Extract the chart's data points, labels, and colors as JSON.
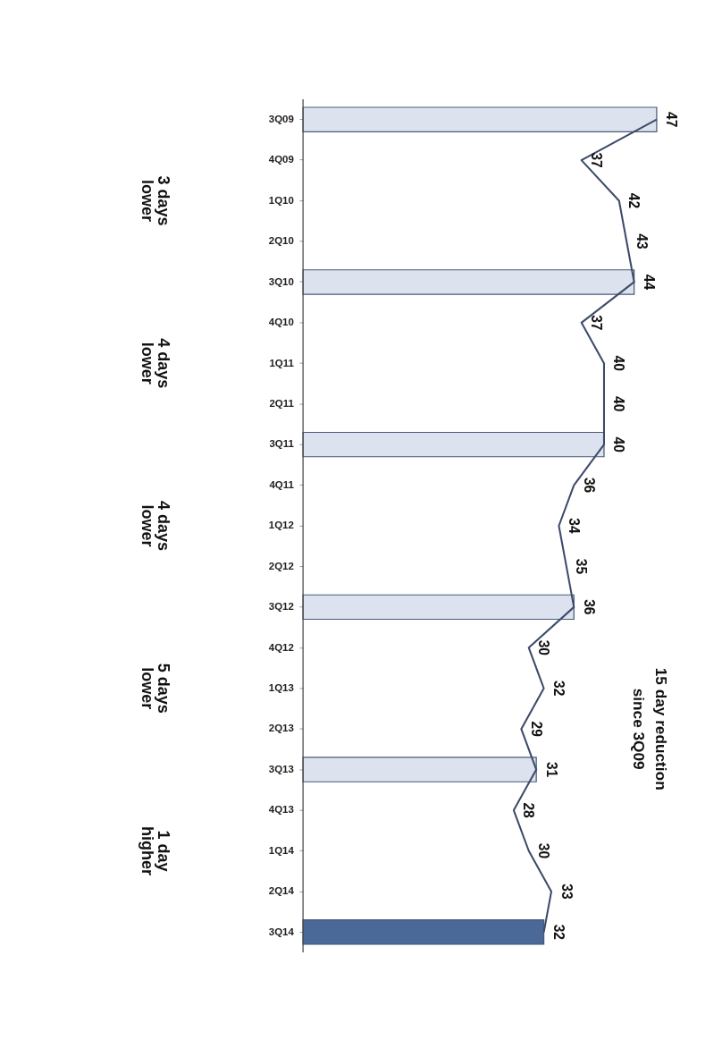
{
  "chart_data": {
    "type": "bar",
    "orientation": "horizontal",
    "categories": [
      "3Q09",
      "4Q09",
      "1Q10",
      "2Q10",
      "3Q10",
      "4Q10",
      "1Q11",
      "2Q11",
      "3Q11",
      "4Q11",
      "1Q12",
      "2Q12",
      "3Q12",
      "4Q12",
      "1Q13",
      "2Q13",
      "3Q13",
      "4Q13",
      "1Q14",
      "2Q14",
      "3Q14"
    ],
    "series": [
      {
        "colors": [
          "#dde3ee",
          null,
          null,
          null,
          "#dde3ee",
          null,
          null,
          null,
          "#dde3ee",
          null,
          null,
          null,
          "#dde3ee",
          null,
          null,
          null,
          "#dde3ee",
          null,
          null,
          null,
          "#4a6898"
        ],
        "values": [
          47,
          null,
          null,
          null,
          44,
          null,
          null,
          null,
          40,
          null,
          null,
          null,
          36,
          null,
          null,
          null,
          31,
          null,
          null,
          null,
          32
        ]
      },
      {
        "type": "line",
        "color": "#3c4b6a",
        "values": [
          47,
          37,
          42,
          43,
          44,
          37,
          40,
          40,
          40,
          36,
          34,
          35,
          36,
          30,
          32,
          29,
          31,
          28,
          30,
          33,
          32
        ],
        "data_labels": true
      }
    ],
    "annotations": [
      "3 days\nlower",
      "4 days\nlower",
      "4 days\nlower",
      "5 days\nlower",
      "1 day\nhigher",
      "15 day reduction\nsince 3Q09"
    ],
    "grid": false,
    "marker": "none"
  }
}
